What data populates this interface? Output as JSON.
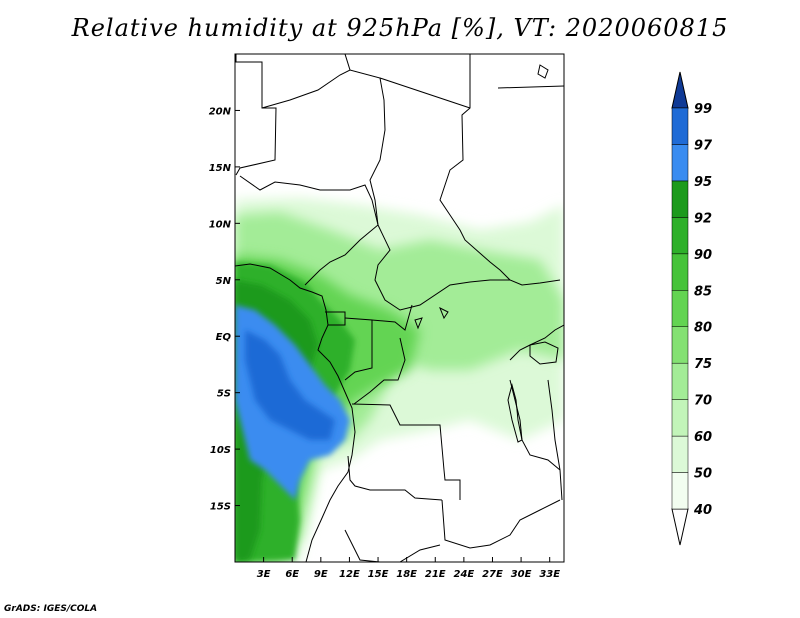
{
  "title": "Relative humidity at 925hPa [%], VT: 2020060815",
  "credit": "GrADS: IGES/COLA",
  "map": {
    "lon_range": [
      0,
      34.5
    ],
    "lat_range": [
      -20,
      25
    ],
    "lon_ticks": [
      {
        "value": 3,
        "label": "3E"
      },
      {
        "value": 6,
        "label": "6E"
      },
      {
        "value": 9,
        "label": "9E"
      },
      {
        "value": 12,
        "label": "12E"
      },
      {
        "value": 15,
        "label": "15E"
      },
      {
        "value": 18,
        "label": "18E"
      },
      {
        "value": 21,
        "label": "21E"
      },
      {
        "value": 24,
        "label": "24E"
      },
      {
        "value": 27,
        "label": "27E"
      },
      {
        "value": 30,
        "label": "30E"
      },
      {
        "value": 33,
        "label": "33E"
      }
    ],
    "lat_ticks": [
      {
        "value": 20,
        "label": "20N"
      },
      {
        "value": 15,
        "label": "15N"
      },
      {
        "value": 10,
        "label": "10N"
      },
      {
        "value": 5,
        "label": "5N"
      },
      {
        "value": 0,
        "label": "EQ"
      },
      {
        "value": -5,
        "label": "5S"
      },
      {
        "value": -10,
        "label": "10S"
      },
      {
        "value": -15,
        "label": "15S"
      }
    ]
  },
  "colorbar": {
    "levels": [
      "40",
      "50",
      "60",
      "70",
      "75",
      "80",
      "85",
      "90",
      "92",
      "95",
      "97",
      "99"
    ],
    "colors": [
      "#f2fdf0",
      "#dcf9d7",
      "#c2f4b9",
      "#a3ec97",
      "#84e173",
      "#63d452",
      "#46c33a",
      "#2eb02a",
      "#1c9a1c",
      "#3a8cf0",
      "#1f6bd6",
      "#1a4fb8",
      "#0f3a96"
    ]
  }
}
